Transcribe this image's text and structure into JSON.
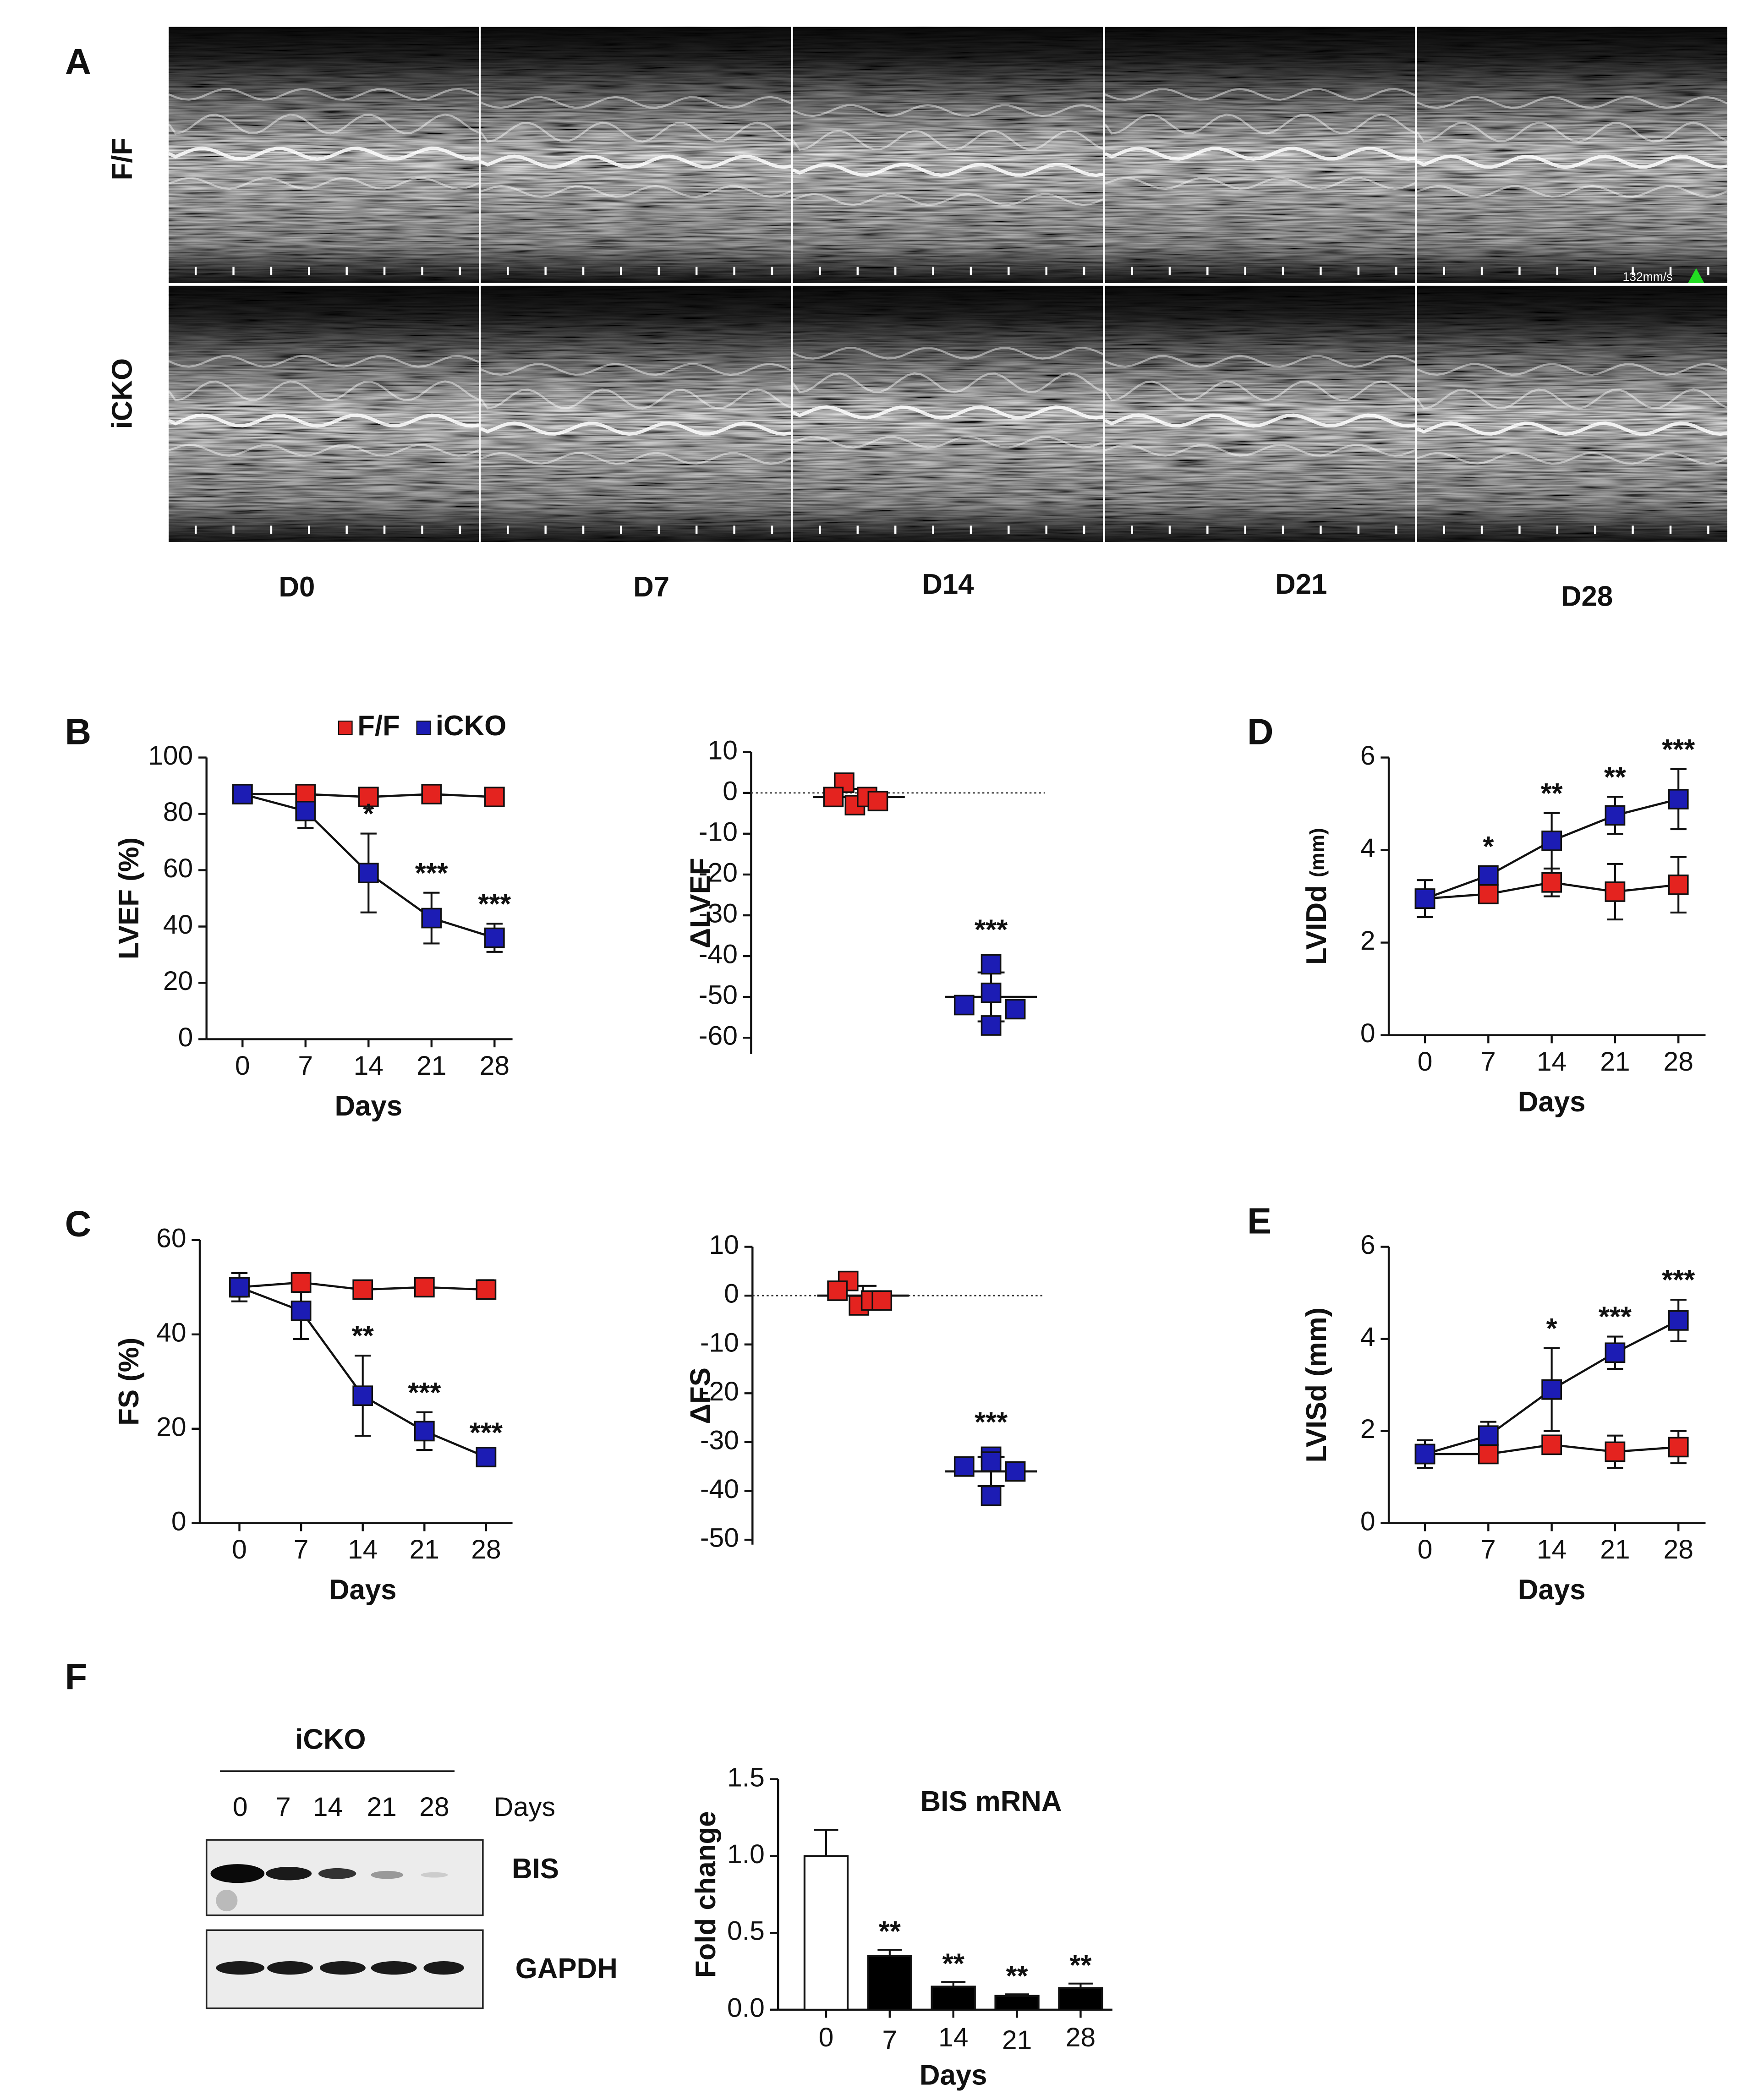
{
  "panel_a": {
    "label": "A",
    "rows": [
      "F/F",
      "iCKO"
    ],
    "columns": [
      "D0",
      "D7",
      "D14",
      "D21",
      "D28"
    ],
    "scale_label": "132mm/s"
  },
  "chart_data": [
    {
      "type": "line",
      "panel": "B",
      "ylabel": "LVEF (%)",
      "xlabel": "Days",
      "x": [
        0,
        7,
        14,
        21,
        28
      ],
      "xticks": [
        0,
        7,
        14,
        21,
        28
      ],
      "xlim": [
        -4,
        30
      ],
      "ylim": [
        0,
        100
      ],
      "yticks": [
        0,
        20,
        40,
        60,
        80,
        100
      ],
      "legend": "top",
      "series": [
        {
          "name": "F/F",
          "color": "#e4231f",
          "values": [
            87,
            87,
            86,
            87,
            86
          ],
          "errors": [
            2,
            3,
            1,
            1,
            1
          ]
        },
        {
          "name": "iCKO",
          "color": "#1c1cb4",
          "values": [
            87,
            81,
            59,
            43,
            36
          ],
          "errors": [
            2,
            6,
            14,
            9,
            5
          ]
        }
      ],
      "annotations": [
        null,
        null,
        "*",
        "***",
        "***"
      ]
    },
    {
      "type": "dot",
      "ylabel": "ΔLVEF",
      "ylim": [
        -64,
        10
      ],
      "yticks": [
        10,
        0,
        -10,
        -20,
        -30,
        -40,
        -50,
        -60
      ],
      "reference": 0,
      "series": [
        {
          "color": "#e4231f",
          "values": [
            2.5,
            -1,
            -3,
            -1,
            -2
          ],
          "mean": -1,
          "sd": 2
        },
        {
          "color": "#1c1cb4",
          "values": [
            -42,
            -52,
            -57,
            -53,
            -49
          ],
          "mean": -50,
          "sd": 6
        }
      ],
      "annotation": "***"
    },
    {
      "type": "line",
      "panel": "C",
      "ylabel": "FS (%)",
      "xlabel": "Days",
      "x": [
        0,
        7,
        14,
        21,
        28
      ],
      "xticks": [
        0,
        7,
        14,
        21,
        28
      ],
      "xlim": [
        -4.5,
        31
      ],
      "ylim": [
        0,
        60
      ],
      "yticks": [
        0,
        20,
        40,
        60
      ],
      "series": [
        {
          "color": "#e4231f",
          "values": [
            50,
            51,
            49.5,
            50,
            49.5
          ],
          "errors": [
            2,
            2,
            1,
            1,
            2
          ]
        },
        {
          "color": "#1c1cb4",
          "values": [
            50,
            45,
            27,
            19.5,
            14
          ],
          "errors": [
            3,
            6,
            8.5,
            4,
            1
          ]
        }
      ],
      "annotations": [
        null,
        null,
        "**",
        "***",
        "***"
      ]
    },
    {
      "type": "dot",
      "ylabel": "ΔFS",
      "ylim": [
        -51,
        10
      ],
      "yticks": [
        10,
        0,
        -10,
        -20,
        -30,
        -40,
        -50
      ],
      "reference": 0,
      "series": [
        {
          "color": "#e4231f",
          "values": [
            3,
            1,
            -2,
            -1,
            -1
          ],
          "mean": 0,
          "sd": 2
        },
        {
          "color": "#1c1cb4",
          "values": [
            -33,
            -35,
            -41,
            -36,
            -34
          ],
          "mean": -36,
          "sd": 3
        }
      ],
      "annotation": "***"
    },
    {
      "type": "line",
      "panel": "D",
      "ylabel": "LVIDd",
      "ylabel_unit": "(mm)",
      "xlabel": "Days",
      "x": [
        0,
        7,
        14,
        21,
        28
      ],
      "xticks": [
        0,
        7,
        14,
        21,
        28
      ],
      "xlim": [
        -4,
        31
      ],
      "ylim": [
        0,
        6
      ],
      "yticks": [
        0,
        2,
        4,
        6
      ],
      "series": [
        {
          "color": "#e4231f",
          "values": [
            2.95,
            3.05,
            3.3,
            3.1,
            3.25
          ],
          "errors": [
            0.2,
            0.1,
            0.3,
            0.6,
            0.6
          ]
        },
        {
          "color": "#1c1cb4",
          "values": [
            2.95,
            3.45,
            4.2,
            4.75,
            5.1
          ],
          "errors": [
            0.4,
            0.2,
            0.6,
            0.4,
            0.65
          ]
        }
      ],
      "annotations": [
        null,
        "*",
        "**",
        "**",
        "***"
      ]
    },
    {
      "type": "line",
      "panel": "E",
      "ylabel": "LVISd (mm)",
      "xlabel": "Days",
      "x": [
        0,
        7,
        14,
        21,
        28
      ],
      "xticks": [
        0,
        7,
        14,
        21,
        28
      ],
      "xlim": [
        -4,
        31
      ],
      "ylim": [
        0,
        6
      ],
      "yticks": [
        0,
        2,
        4,
        6
      ],
      "series": [
        {
          "color": "#e4231f",
          "values": [
            1.5,
            1.5,
            1.7,
            1.55,
            1.65
          ],
          "errors": [
            0.2,
            0.1,
            0.2,
            0.35,
            0.35
          ]
        },
        {
          "color": "#1c1cb4",
          "values": [
            1.5,
            1.9,
            2.9,
            3.7,
            4.4
          ],
          "errors": [
            0.3,
            0.3,
            0.9,
            0.35,
            0.45
          ]
        }
      ],
      "annotations": [
        null,
        null,
        "*",
        "***",
        "***"
      ]
    },
    {
      "type": "bar",
      "title": "BIS mRNA",
      "ylabel": "Fold change",
      "xlabel": "Days",
      "categories": [
        "0",
        "7",
        "14",
        "21",
        "28"
      ],
      "values": [
        1.0,
        0.35,
        0.15,
        0.09,
        0.14
      ],
      "errors": [
        0.17,
        0.04,
        0.03,
        0.01,
        0.03
      ],
      "colors": [
        "#ffffff",
        "#000000",
        "#000000",
        "#000000",
        "#000000"
      ],
      "ylim": [
        0,
        1.5
      ],
      "yticks": [
        {
          "value": 0,
          "label": "0.0"
        },
        0.5,
        {
          "value": 1.0,
          "label": "1.0"
        },
        1.5
      ],
      "annotations": [
        null,
        "**",
        "**",
        "**",
        "**"
      ]
    }
  ],
  "panel_f_blot": {
    "label": "F",
    "group": "iCKO",
    "lanes": [
      "0",
      "7",
      "14",
      "21",
      "28"
    ],
    "lanes_label": "Days",
    "rows": [
      "BIS",
      "GAPDH"
    ]
  }
}
